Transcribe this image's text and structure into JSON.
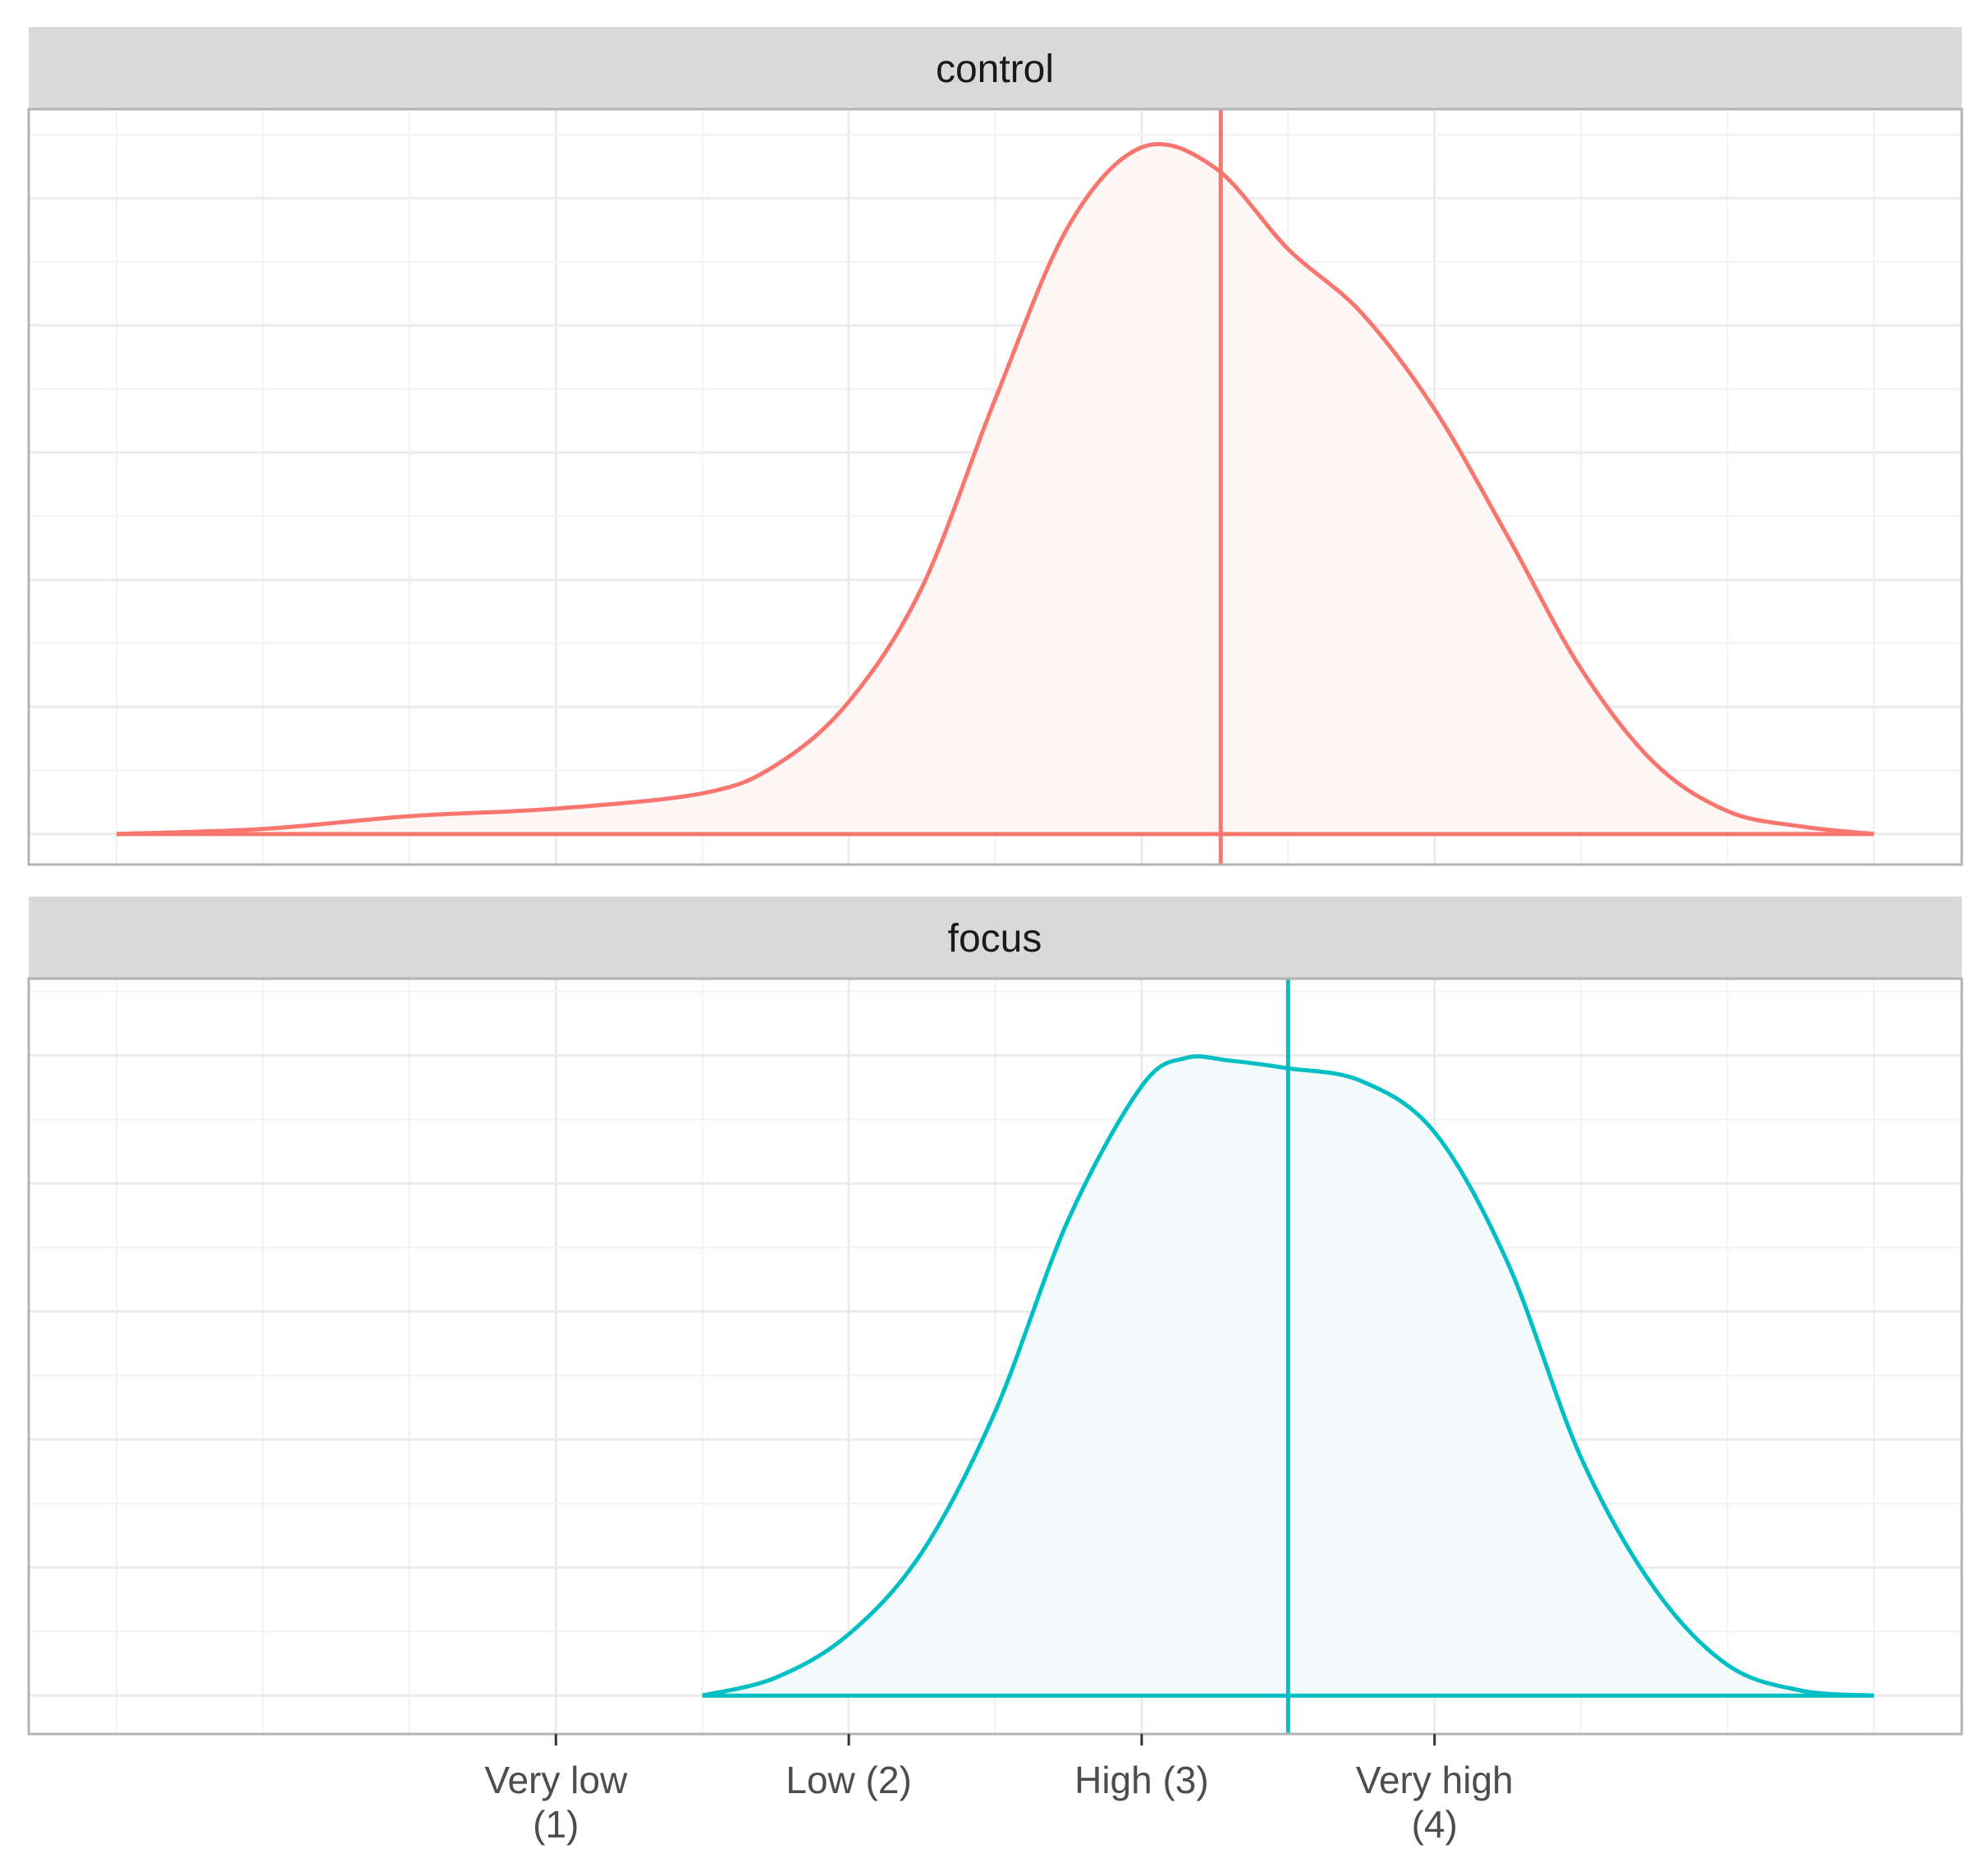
{
  "chart_data": {
    "type": "area",
    "subtype": "faceted-density",
    "grid": true,
    "x_ticks": [
      {
        "value": 1,
        "label_lines": [
          "Very low",
          "(1)"
        ]
      },
      {
        "value": 2,
        "label_lines": [
          "Low (2)"
        ]
      },
      {
        "value": 3,
        "label_lines": [
          "High (3)"
        ]
      },
      {
        "value": 4,
        "label_lines": [
          "Very high",
          "(4)"
        ]
      }
    ],
    "xlim": [
      -0.8,
      5.8
    ],
    "panels": [
      {
        "label": "control",
        "color": "#F8766D",
        "fill": "#FEF7F6",
        "mean": 3.27,
        "ylim": [
          -0.12,
          2.85
        ],
        "points": [
          [
            -0.5,
            0.0
          ],
          [
            0.0,
            0.02
          ],
          [
            0.5,
            0.07
          ],
          [
            1.0,
            0.1
          ],
          [
            1.5,
            0.16
          ],
          [
            1.75,
            0.27
          ],
          [
            2.0,
            0.52
          ],
          [
            2.25,
            0.97
          ],
          [
            2.5,
            1.71
          ],
          [
            2.75,
            2.39
          ],
          [
            3.0,
            2.7
          ],
          [
            3.25,
            2.62
          ],
          [
            3.5,
            2.3
          ],
          [
            3.75,
            2.05
          ],
          [
            4.0,
            1.67
          ],
          [
            4.25,
            1.17
          ],
          [
            4.5,
            0.65
          ],
          [
            4.75,
            0.28
          ],
          [
            5.0,
            0.09
          ],
          [
            5.25,
            0.03
          ],
          [
            5.5,
            0.0
          ]
        ]
      },
      {
        "label": "focus",
        "color": "#00BFC4",
        "fill": "#F3FBFC",
        "mean": 3.5,
        "ylim": [
          -0.15,
          2.8
        ],
        "points": [
          [
            1.5,
            0.0
          ],
          [
            1.75,
            0.07
          ],
          [
            2.0,
            0.24
          ],
          [
            2.25,
            0.56
          ],
          [
            2.5,
            1.11
          ],
          [
            2.75,
            1.86
          ],
          [
            3.0,
            2.38
          ],
          [
            3.15,
            2.49
          ],
          [
            3.3,
            2.48
          ],
          [
            3.5,
            2.45
          ],
          [
            3.75,
            2.4
          ],
          [
            4.0,
            2.2
          ],
          [
            4.25,
            1.69
          ],
          [
            4.5,
            0.93
          ],
          [
            4.75,
            0.42
          ],
          [
            5.0,
            0.12
          ],
          [
            5.25,
            0.02
          ],
          [
            5.5,
            0.0
          ]
        ]
      }
    ]
  }
}
